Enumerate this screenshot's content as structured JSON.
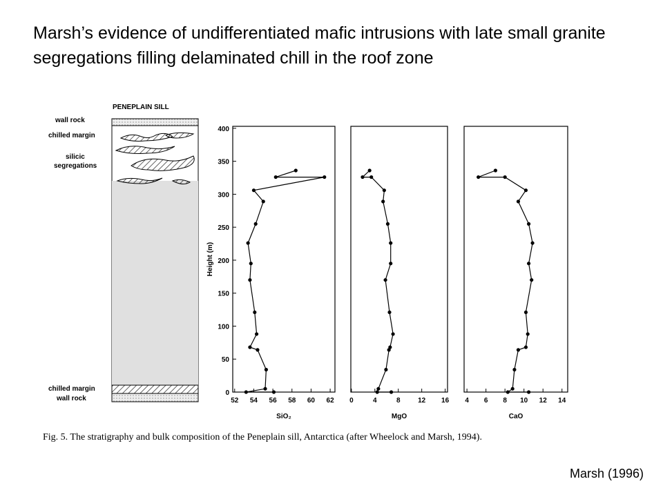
{
  "slide": {
    "title": "Marsh’s evidence of undifferentiated mafic intrusions with late small granite segregations filling delaminated chill in the roof zone",
    "credit": "Marsh (1996)",
    "column_title": "PENEPLAIN SILL",
    "column_labels": [
      "wall rock",
      "chilled  margin",
      "silicic",
      "segregations",
      "chilled  margin",
      "wall  rock"
    ],
    "caption": "Fig. 5. The stratigraphy and bulk composition of the Peneplain sill, Antarctica (after Wheelock and Marsh, 1994)."
  },
  "chart_data": [
    {
      "type": "line",
      "y_label": "Height (m)",
      "x_label": "SiO₂",
      "x": [
        58.4,
        56.3,
        61.4,
        54.0,
        55.0,
        54.2,
        53.4,
        53.7,
        53.6,
        54.1,
        54.3,
        53.6,
        54.4,
        55.3,
        55.2,
        53.2,
        56.1
      ],
      "values": [
        336,
        326,
        326,
        306,
        289,
        255,
        226,
        195,
        170,
        121,
        88,
        68,
        64,
        34,
        5,
        0,
        0
      ],
      "color": "#000000",
      "xlim": [
        51.8,
        62.5
      ],
      "xticks": [
        52,
        54,
        56,
        58,
        60,
        62
      ],
      "ylim": [
        0,
        403
      ],
      "yticks": [
        0,
        50,
        100,
        150,
        200,
        250,
        300,
        350,
        400
      ]
    },
    {
      "type": "line",
      "x_label": "MgO",
      "x": [
        3.1,
        1.9,
        3.4,
        5.6,
        5.4,
        6.2,
        6.7,
        6.7,
        5.8,
        6.5,
        7.1,
        6.6,
        6.4,
        5.9,
        4.6,
        4.4,
        6.8
      ],
      "values": [
        336,
        326,
        326,
        306,
        289,
        255,
        226,
        195,
        170,
        121,
        88,
        68,
        64,
        34,
        5,
        0,
        0
      ],
      "color": "#000000",
      "xlim": [
        -0.1,
        16.4
      ],
      "xticks": [
        0,
        4,
        8,
        12,
        16
      ],
      "ylim": [
        0,
        403
      ]
    },
    {
      "type": "line",
      "x_label": "CaO",
      "x": [
        7.0,
        5.2,
        8.0,
        10.2,
        9.4,
        10.5,
        10.9,
        10.5,
        10.8,
        10.2,
        10.4,
        10.2,
        9.4,
        9.0,
        8.8,
        8.3,
        10.5
      ],
      "values": [
        336,
        326,
        326,
        306,
        289,
        255,
        226,
        195,
        170,
        121,
        88,
        68,
        64,
        34,
        5,
        0,
        0
      ],
      "color": "#000000",
      "xlim": [
        3.7,
        14.6
      ],
      "xticks": [
        4,
        6,
        8,
        10,
        12,
        14
      ],
      "ylim": [
        0,
        403
      ]
    }
  ]
}
